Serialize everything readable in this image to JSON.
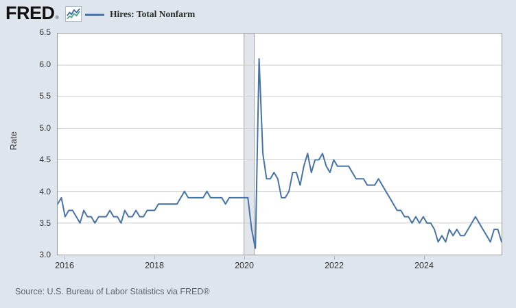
{
  "header": {
    "logo_text": "FRED",
    "registered_mark": "®",
    "legend_label": "Hires: Total Nonfarm"
  },
  "source_note": "Source: U.S. Bureau of Labor Statistics via FRED®",
  "colors": {
    "background": "#dee5ed",
    "plot_background": "#ffffff",
    "plot_border": "#999999",
    "gridline": "#cccccc",
    "series_line": "#4572a7",
    "recession_band_fill": "#e2e5e9",
    "recession_band_edge": "#a0a5ab",
    "logo_icon_line_blue": "#3b6ba5",
    "logo_icon_line_teal": "#4fa08b"
  },
  "chart_data": {
    "type": "line",
    "title": "Hires: Total Nonfarm",
    "ylabel": "Rate",
    "xlabel": "",
    "ylim": [
      3.0,
      6.5
    ],
    "grid": true,
    "legend_position": "top-left",
    "yticks": [
      "6.5",
      "6.0",
      "5.5",
      "5.0",
      "4.5",
      "4.0",
      "3.5",
      "3.0"
    ],
    "xticks": [
      "2016",
      "2018",
      "2020",
      "2022",
      "2024"
    ],
    "frequency": "monthly",
    "x_start": "2015-11",
    "x_end": "2025-10",
    "recession_band": {
      "from": "2020-02",
      "to": "2020-04"
    },
    "series": [
      {
        "name": "Hires: Total Nonfarm",
        "color": "#4572a7",
        "values": [
          3.8,
          3.9,
          3.6,
          3.7,
          3.7,
          3.6,
          3.5,
          3.7,
          3.6,
          3.6,
          3.5,
          3.6,
          3.6,
          3.6,
          3.7,
          3.6,
          3.6,
          3.5,
          3.7,
          3.6,
          3.6,
          3.7,
          3.6,
          3.6,
          3.7,
          3.7,
          3.7,
          3.8,
          3.8,
          3.8,
          3.8,
          3.8,
          3.8,
          3.9,
          4.0,
          3.9,
          3.9,
          3.9,
          3.9,
          3.9,
          4.0,
          3.9,
          3.9,
          3.9,
          3.9,
          3.8,
          3.9,
          3.9,
          3.9,
          3.9,
          3.9,
          3.9,
          3.4,
          3.1,
          6.1,
          4.6,
          4.2,
          4.2,
          4.3,
          4.2,
          3.9,
          3.9,
          4.0,
          4.3,
          4.3,
          4.1,
          4.4,
          4.6,
          4.3,
          4.5,
          4.5,
          4.6,
          4.4,
          4.3,
          4.5,
          4.4,
          4.4,
          4.4,
          4.4,
          4.3,
          4.2,
          4.2,
          4.2,
          4.1,
          4.1,
          4.1,
          4.2,
          4.1,
          4.0,
          3.9,
          3.8,
          3.7,
          3.7,
          3.6,
          3.6,
          3.5,
          3.6,
          3.5,
          3.6,
          3.5,
          3.5,
          3.4,
          3.2,
          3.3,
          3.2,
          3.4,
          3.3,
          3.4,
          3.3,
          3.3,
          3.4,
          3.5,
          3.6,
          3.5,
          3.4,
          3.3,
          3.2,
          3.4,
          3.4,
          3.2
        ]
      }
    ]
  }
}
